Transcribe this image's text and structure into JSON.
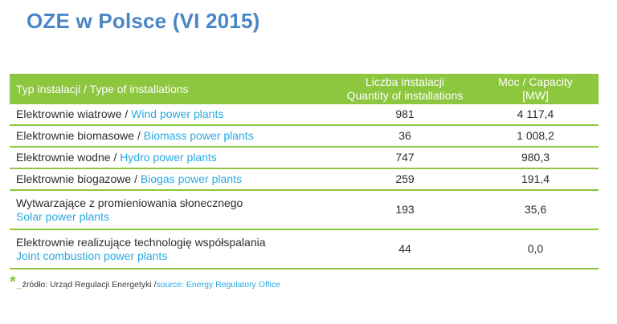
{
  "title": "OZE w Polsce (VI 2015)",
  "table": {
    "headers": {
      "type": "Typ instalacji / Type of installations",
      "count_line1": "Liczba instalacji",
      "count_line2": "Quantity of installations",
      "capacity_line1": "Moc / Capacity",
      "capacity_line2": "[MW]"
    },
    "rows": [
      {
        "pl": "Elektrownie wiatrowe",
        "sep": " / ",
        "en": "Wind power plants",
        "count": "981",
        "capacity": "4 117,4"
      },
      {
        "pl": "Elektrownie biomasowe",
        "sep": " / ",
        "en": "Biomass power plants",
        "count": "36",
        "capacity": "1 008,2"
      },
      {
        "pl": "Elektrownie wodne",
        "sep": " / ",
        "en": "Hydro power plants",
        "count": "747",
        "capacity": "980,3"
      },
      {
        "pl": "Elektrownie biogazowe",
        "sep": " / ",
        "en": "Biogas power plants",
        "count": "259",
        "capacity": "191,4"
      },
      {
        "pl": "Wytwarzające z promieniowania słonecznego",
        "en": "Solar power plants",
        "count": "193",
        "capacity": "35,6"
      },
      {
        "pl": "Elektrownie realizujące technologię współspalania",
        "en": "Joint combustion power plants",
        "count": "44",
        "capacity": "0,0"
      }
    ]
  },
  "footer": {
    "star": "*",
    "underscore": "_",
    "source_pl": "źródło: Urząd Regulacji Energetyki / ",
    "source_en": "source: Energy Regulatory Office"
  },
  "colors": {
    "title": "#4a86c5",
    "header_bg": "#8dc63f",
    "english_text": "#29a9e1",
    "row_border": "#8dc63f"
  }
}
